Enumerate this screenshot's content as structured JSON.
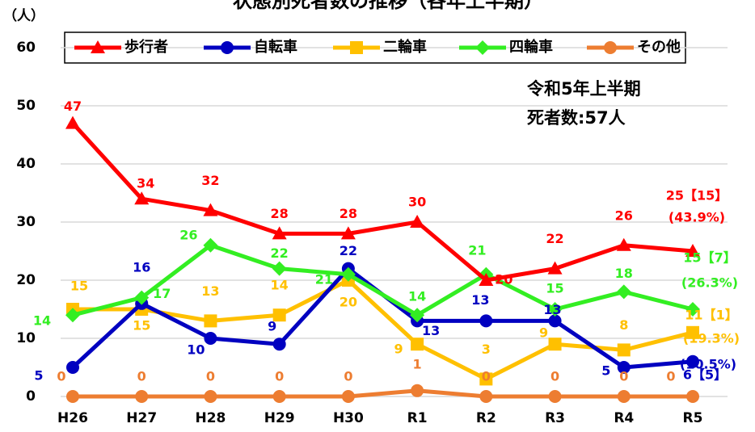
{
  "chart_data": {
    "type": "line",
    "title": "状態別死者数の推移（各年上半期）",
    "y_label": "（人）",
    "annotations": [
      "令和5年上半期",
      "死者数:57人"
    ],
    "categories": [
      "H26",
      "H27",
      "H28",
      "H29",
      "H30",
      "R1",
      "R2",
      "R3",
      "R4",
      "R5"
    ],
    "ylim": [
      0,
      60
    ],
    "yticks": [
      0,
      10,
      20,
      30,
      40,
      50,
      60
    ],
    "grid": true,
    "legend": "top",
    "series": [
      {
        "name": "歩行者",
        "color": "#ff0000",
        "marker": "triangle",
        "values": [
          47,
          34,
          32,
          28,
          28,
          30,
          20,
          22,
          26,
          25
        ],
        "value_labels": [
          "47",
          "34",
          "32",
          "28",
          "28",
          "30",
          "20",
          "22",
          "26",
          "25【15】"
        ],
        "note": "(43.9%)"
      },
      {
        "name": "自転車",
        "color": "#0000c0",
        "marker": "circle",
        "values": [
          5,
          16,
          10,
          9,
          22,
          13,
          13,
          13,
          5,
          6
        ],
        "value_labels": [
          "5",
          "16",
          "10",
          "9",
          "22",
          "13",
          "13",
          "13",
          "5",
          "6【5】"
        ],
        "note": "(10.5%)"
      },
      {
        "name": "二輪車",
        "color": "#ffc000",
        "marker": "square",
        "values": [
          15,
          15,
          13,
          14,
          20,
          9,
          3,
          9,
          8,
          11
        ],
        "value_labels": [
          "15",
          "15",
          "13",
          "14",
          "20",
          "9",
          "3",
          "9",
          "8",
          "11【1】"
        ],
        "note": "(19.3%)"
      },
      {
        "name": "四輪車",
        "color": "#33ee22",
        "marker": "diamond",
        "values": [
          14,
          17,
          26,
          22,
          21,
          14,
          21,
          15,
          18,
          15
        ],
        "value_labels": [
          "14",
          "17",
          "26",
          "22",
          "21",
          "14",
          "21",
          "15",
          "18",
          "15【7】"
        ],
        "note": "(26.3%)"
      },
      {
        "name": "その他",
        "color": "#ed7d31",
        "marker": "circle",
        "values": [
          0,
          0,
          0,
          0,
          0,
          1,
          0,
          0,
          0,
          0
        ],
        "value_labels": [
          "0",
          "0",
          "0",
          "0",
          "0",
          "1",
          "0",
          "0",
          "0",
          "0"
        ]
      }
    ]
  }
}
